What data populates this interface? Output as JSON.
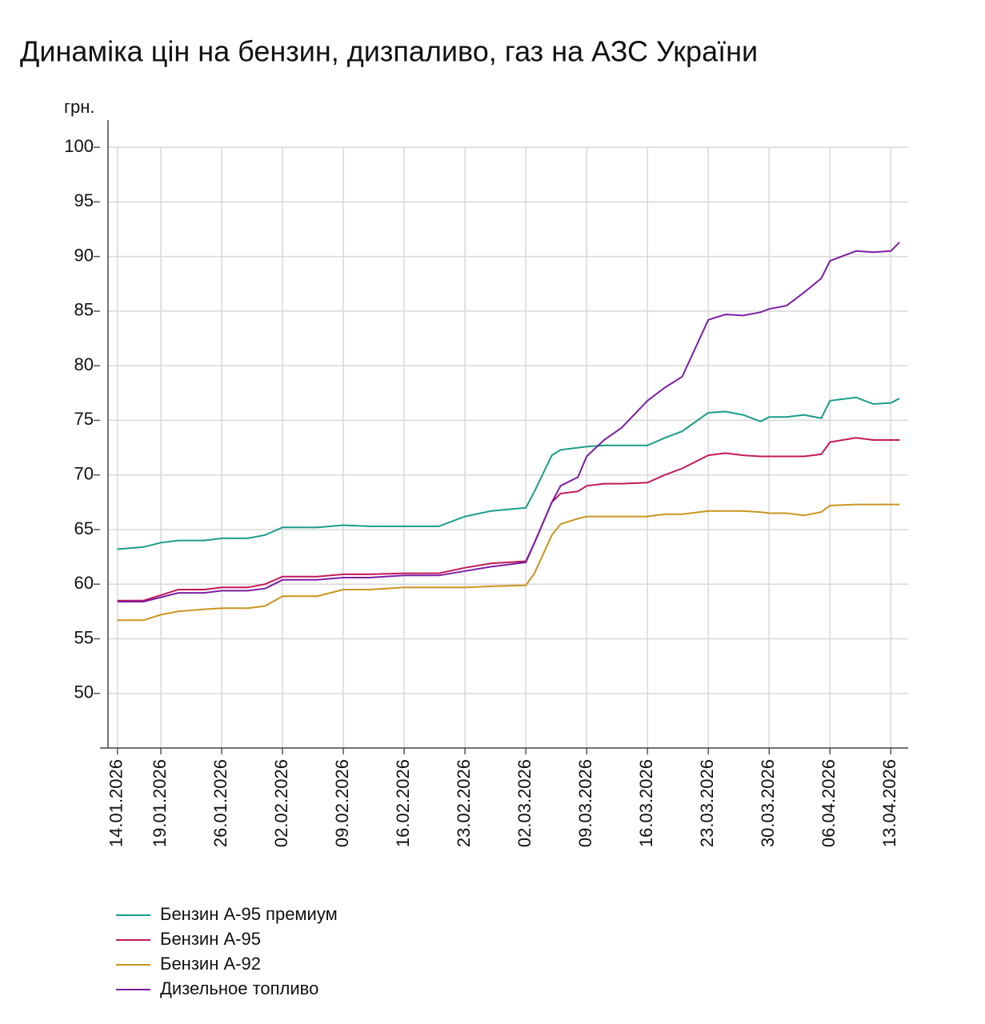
{
  "chart_data": {
    "type": "line",
    "title": "Динаміка цін на бензин, дизпаливо, газ на АЗС України",
    "y_label": "грн.",
    "x": [
      "14.01.2026",
      "17.01.2026",
      "19.01.2026",
      "21.01.2026",
      "24.01.2026",
      "26.01.2026",
      "29.01.2026",
      "31.01.2026",
      "02.02.2026",
      "06.02.2026",
      "09.02.2026",
      "12.02.2026",
      "16.02.2026",
      "20.02.2026",
      "23.02.2026",
      "26.02.2026",
      "02.03.2026",
      "03.03.2026",
      "05.03.2026",
      "06.03.2026",
      "08.03.2026",
      "09.03.2026",
      "11.03.2026",
      "13.03.2026",
      "16.03.2026",
      "18.03.2026",
      "20.03.2026",
      "23.03.2026",
      "25.03.2026",
      "27.03.2026",
      "29.03.2026",
      "30.03.2026",
      "01.04.2026",
      "03.04.2026",
      "05.04.2026",
      "06.04.2026",
      "09.04.2026",
      "11.04.2026",
      "13.04.2026",
      "14.04.2026"
    ],
    "series": [
      {
        "name": "Бензин А-95 премиум",
        "color": "#1a9c8a",
        "values": [
          63.2,
          63.4,
          63.8,
          64.0,
          64.0,
          64.2,
          64.2,
          64.5,
          65.2,
          65.2,
          65.4,
          65.3,
          65.3,
          65.3,
          66.2,
          66.7,
          67.0,
          68.5,
          71.8,
          72.3,
          72.5,
          72.6,
          72.7,
          72.7,
          72.7,
          73.4,
          74.0,
          75.7,
          75.8,
          75.5,
          74.9,
          75.3,
          75.3,
          75.5,
          75.2,
          76.8,
          77.1,
          76.5,
          76.6,
          77.0
        ]
      },
      {
        "name": "Бензин А-95",
        "color": "#c2185b",
        "values": [
          58.5,
          58.5,
          59.0,
          59.5,
          59.5,
          59.7,
          59.7,
          60.0,
          60.7,
          60.7,
          60.9,
          60.9,
          61.0,
          61.0,
          61.5,
          61.9,
          62.1,
          63.8,
          67.5,
          68.3,
          68.5,
          69.0,
          69.2,
          69.2,
          69.3,
          70.0,
          70.6,
          71.8,
          72.0,
          71.8,
          71.7,
          71.7,
          71.7,
          71.7,
          71.9,
          73.0,
          73.4,
          73.2,
          73.2,
          73.2
        ]
      },
      {
        "name": "Бензин А-92",
        "color": "#c8961e",
        "values": [
          56.7,
          56.7,
          57.2,
          57.5,
          57.7,
          57.8,
          57.8,
          58.0,
          58.9,
          58.9,
          59.5,
          59.5,
          59.7,
          59.7,
          59.7,
          59.8,
          59.9,
          61.0,
          64.5,
          65.5,
          66.0,
          66.2,
          66.2,
          66.2,
          66.2,
          66.4,
          66.4,
          66.7,
          66.7,
          66.7,
          66.6,
          66.5,
          66.5,
          66.3,
          66.6,
          67.2,
          67.3,
          67.3,
          67.3,
          67.3
        ]
      },
      {
        "name": "Дизельное топливо",
        "color": "#7b1fa2",
        "values": [
          58.4,
          58.4,
          58.8,
          59.2,
          59.2,
          59.4,
          59.4,
          59.6,
          60.4,
          60.4,
          60.6,
          60.6,
          60.8,
          60.8,
          61.2,
          61.6,
          62.0,
          63.8,
          67.5,
          69.0,
          69.8,
          71.7,
          73.2,
          74.3,
          76.8,
          78.0,
          79.0,
          84.2,
          84.7,
          84.6,
          84.9,
          85.2,
          85.5,
          86.7,
          88.0,
          89.6,
          90.5,
          90.4,
          90.5,
          91.3
        ]
      }
    ],
    "xlim": [
      "12.01.2026",
      "15.04.2026"
    ],
    "xticks": [
      "14.01.2026",
      "19.01.2026",
      "26.01.2026",
      "02.02.2026",
      "09.02.2026",
      "16.02.2026",
      "23.02.2026",
      "02.03.2026",
      "09.03.2026",
      "16.03.2026",
      "23.03.2026",
      "30.03.2026",
      "06.04.2026",
      "13.04.2026"
    ],
    "ylim": [
      45,
      102.5
    ],
    "yticks": [
      50,
      55,
      60,
      65,
      70,
      75,
      80,
      85,
      90,
      95,
      100
    ],
    "grid": true,
    "legend": "bottom-left"
  }
}
